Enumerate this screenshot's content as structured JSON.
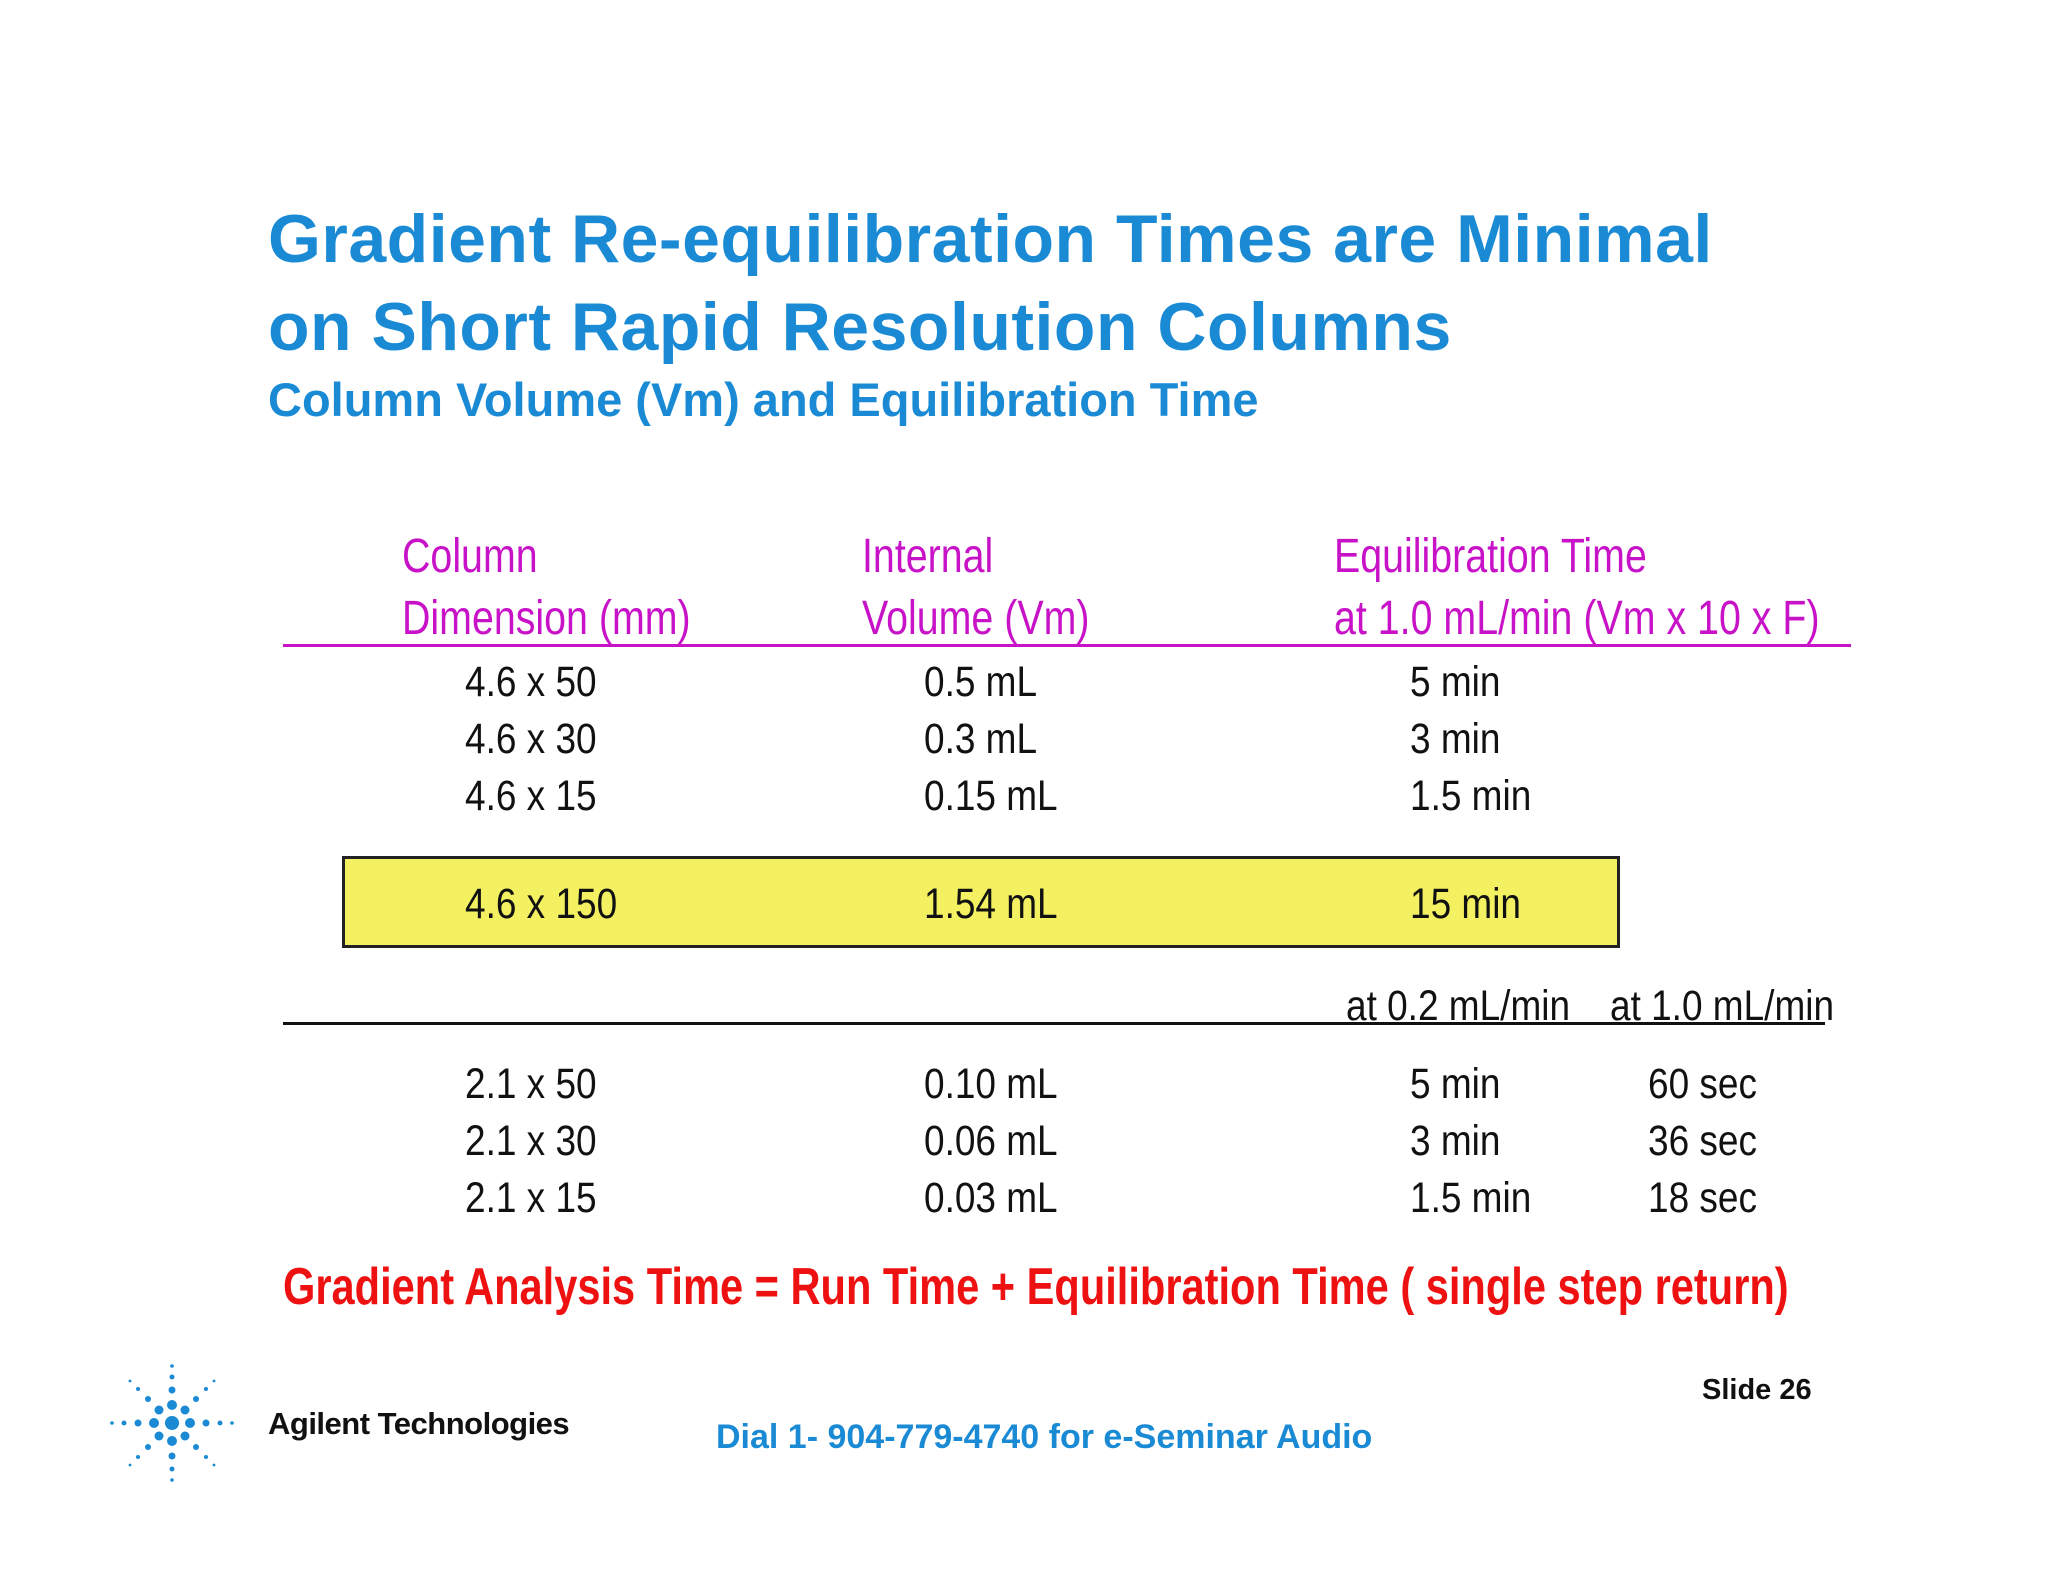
{
  "slide": {
    "title_line1": "Gradient Re-equilibration Times are Minimal",
    "title_line2": "on Short Rapid Resolution Columns",
    "subtitle": "Column Volume (Vm) and Equilibration Time"
  },
  "table": {
    "headers": {
      "col1_line1": "Column",
      "col1_line2": "Dimension (mm)",
      "col2_line1": "Internal",
      "col2_line2": "Volume (Vm)",
      "col3_line1": "Equilibration Time",
      "col3_line2": "at 1.0 mL/min (Vm x 10 x F)"
    },
    "rows_46": [
      {
        "dim": "4.6 x 50",
        "vol": "0.5 mL",
        "time": "5 min"
      },
      {
        "dim": "4.6 x 30",
        "vol": "0.3 mL",
        "time": "3 min"
      },
      {
        "dim": "4.6 x 15",
        "vol": "0.15 mL",
        "time": "1.5 min"
      }
    ],
    "highlight_row": {
      "dim": "4.6 x 150",
      "vol": "1.54 mL",
      "time": "15 min"
    },
    "subheaders": {
      "at_02": "at 0.2 mL/min",
      "at_10": "at 1.0 mL/min"
    },
    "rows_21": [
      {
        "dim": "2.1 x 50",
        "vol": "0.10 mL",
        "time": "5 min",
        "time2": "60 sec"
      },
      {
        "dim": "2.1 x 30",
        "vol": "0.06 mL",
        "time": "3 min",
        "time2": "36 sec"
      },
      {
        "dim": "2.1 x 15",
        "vol": "0.03 mL",
        "time": "1.5 min",
        "time2": "18 sec"
      }
    ]
  },
  "formula": "Gradient Analysis Time = Run Time + Equilibration Time  ( single step return)",
  "footer": {
    "brand": "Agilent Technologies",
    "logo_icon": "agilent-spark-icon",
    "dial": "Dial 1- 904-779-4740 for e-Seminar Audio",
    "slide_number": "Slide 26"
  },
  "colors": {
    "title": "#1a8ad4",
    "header": "#c812c8",
    "formula": "#ee1111",
    "highlight": "#f3f061"
  }
}
